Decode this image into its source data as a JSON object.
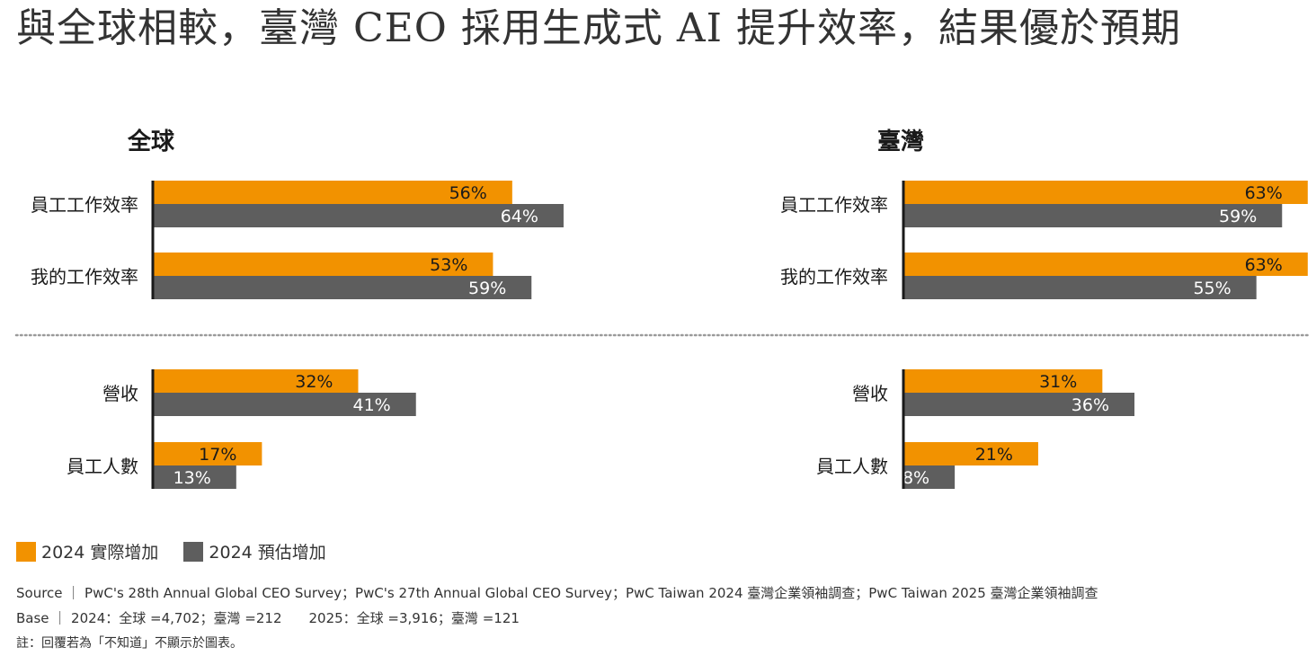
{
  "title": "與全球相較，臺灣 CEO 採用生成式 AI 提升效率，結果優於預期",
  "colors": {
    "actual": "#F29200",
    "estimate": "#5E5E5E",
    "axis": "#1a1a1a",
    "divider": "#9a9a9a"
  },
  "legend": {
    "actual": "2024 實際增加",
    "estimate": "2024 預估增加"
  },
  "notes": {
    "source": "Source ｜ PwC's 28th Annual Global CEO Survey；PwC's 27th Annual Global CEO Survey；PwC Taiwan 2024 臺灣企業領袖調查；PwC Taiwan 2025 臺灣企業領袖調查",
    "base": "Base ｜ 2024：全球 =4,702；臺灣 =212　　2025：全球 =3,916；臺灣 =121",
    "note": "註：回覆若為「不知道」不顯示於圖表。"
  },
  "chart_data": [
    {
      "type": "bar",
      "title": "全球",
      "categories": [
        "員工工作效率",
        "我的工作效率"
      ],
      "series": [
        {
          "name": "2024 實際增加",
          "values": [
            56,
            53
          ]
        },
        {
          "name": "2024 預估增加",
          "values": [
            64,
            59
          ]
        }
      ],
      "unit": "%"
    },
    {
      "type": "bar",
      "title": "臺灣",
      "categories": [
        "員工工作效率",
        "我的工作效率"
      ],
      "series": [
        {
          "name": "2024 實際增加",
          "values": [
            63,
            63
          ]
        },
        {
          "name": "2024 預估增加",
          "values": [
            59,
            55
          ]
        }
      ],
      "unit": "%"
    },
    {
      "type": "bar",
      "title": "",
      "categories": [
        "營收",
        "員工人數"
      ],
      "series": [
        {
          "name": "2024 實際增加",
          "values": [
            32,
            17
          ]
        },
        {
          "name": "2024 預估增加",
          "values": [
            41,
            13
          ]
        }
      ],
      "unit": "%"
    },
    {
      "type": "bar",
      "title": "",
      "categories": [
        "營收",
        "員工人數"
      ],
      "series": [
        {
          "name": "2024 實際增加",
          "values": [
            31,
            21
          ]
        },
        {
          "name": "2024 預估增加",
          "values": [
            36,
            8
          ]
        }
      ],
      "unit": "%"
    }
  ]
}
